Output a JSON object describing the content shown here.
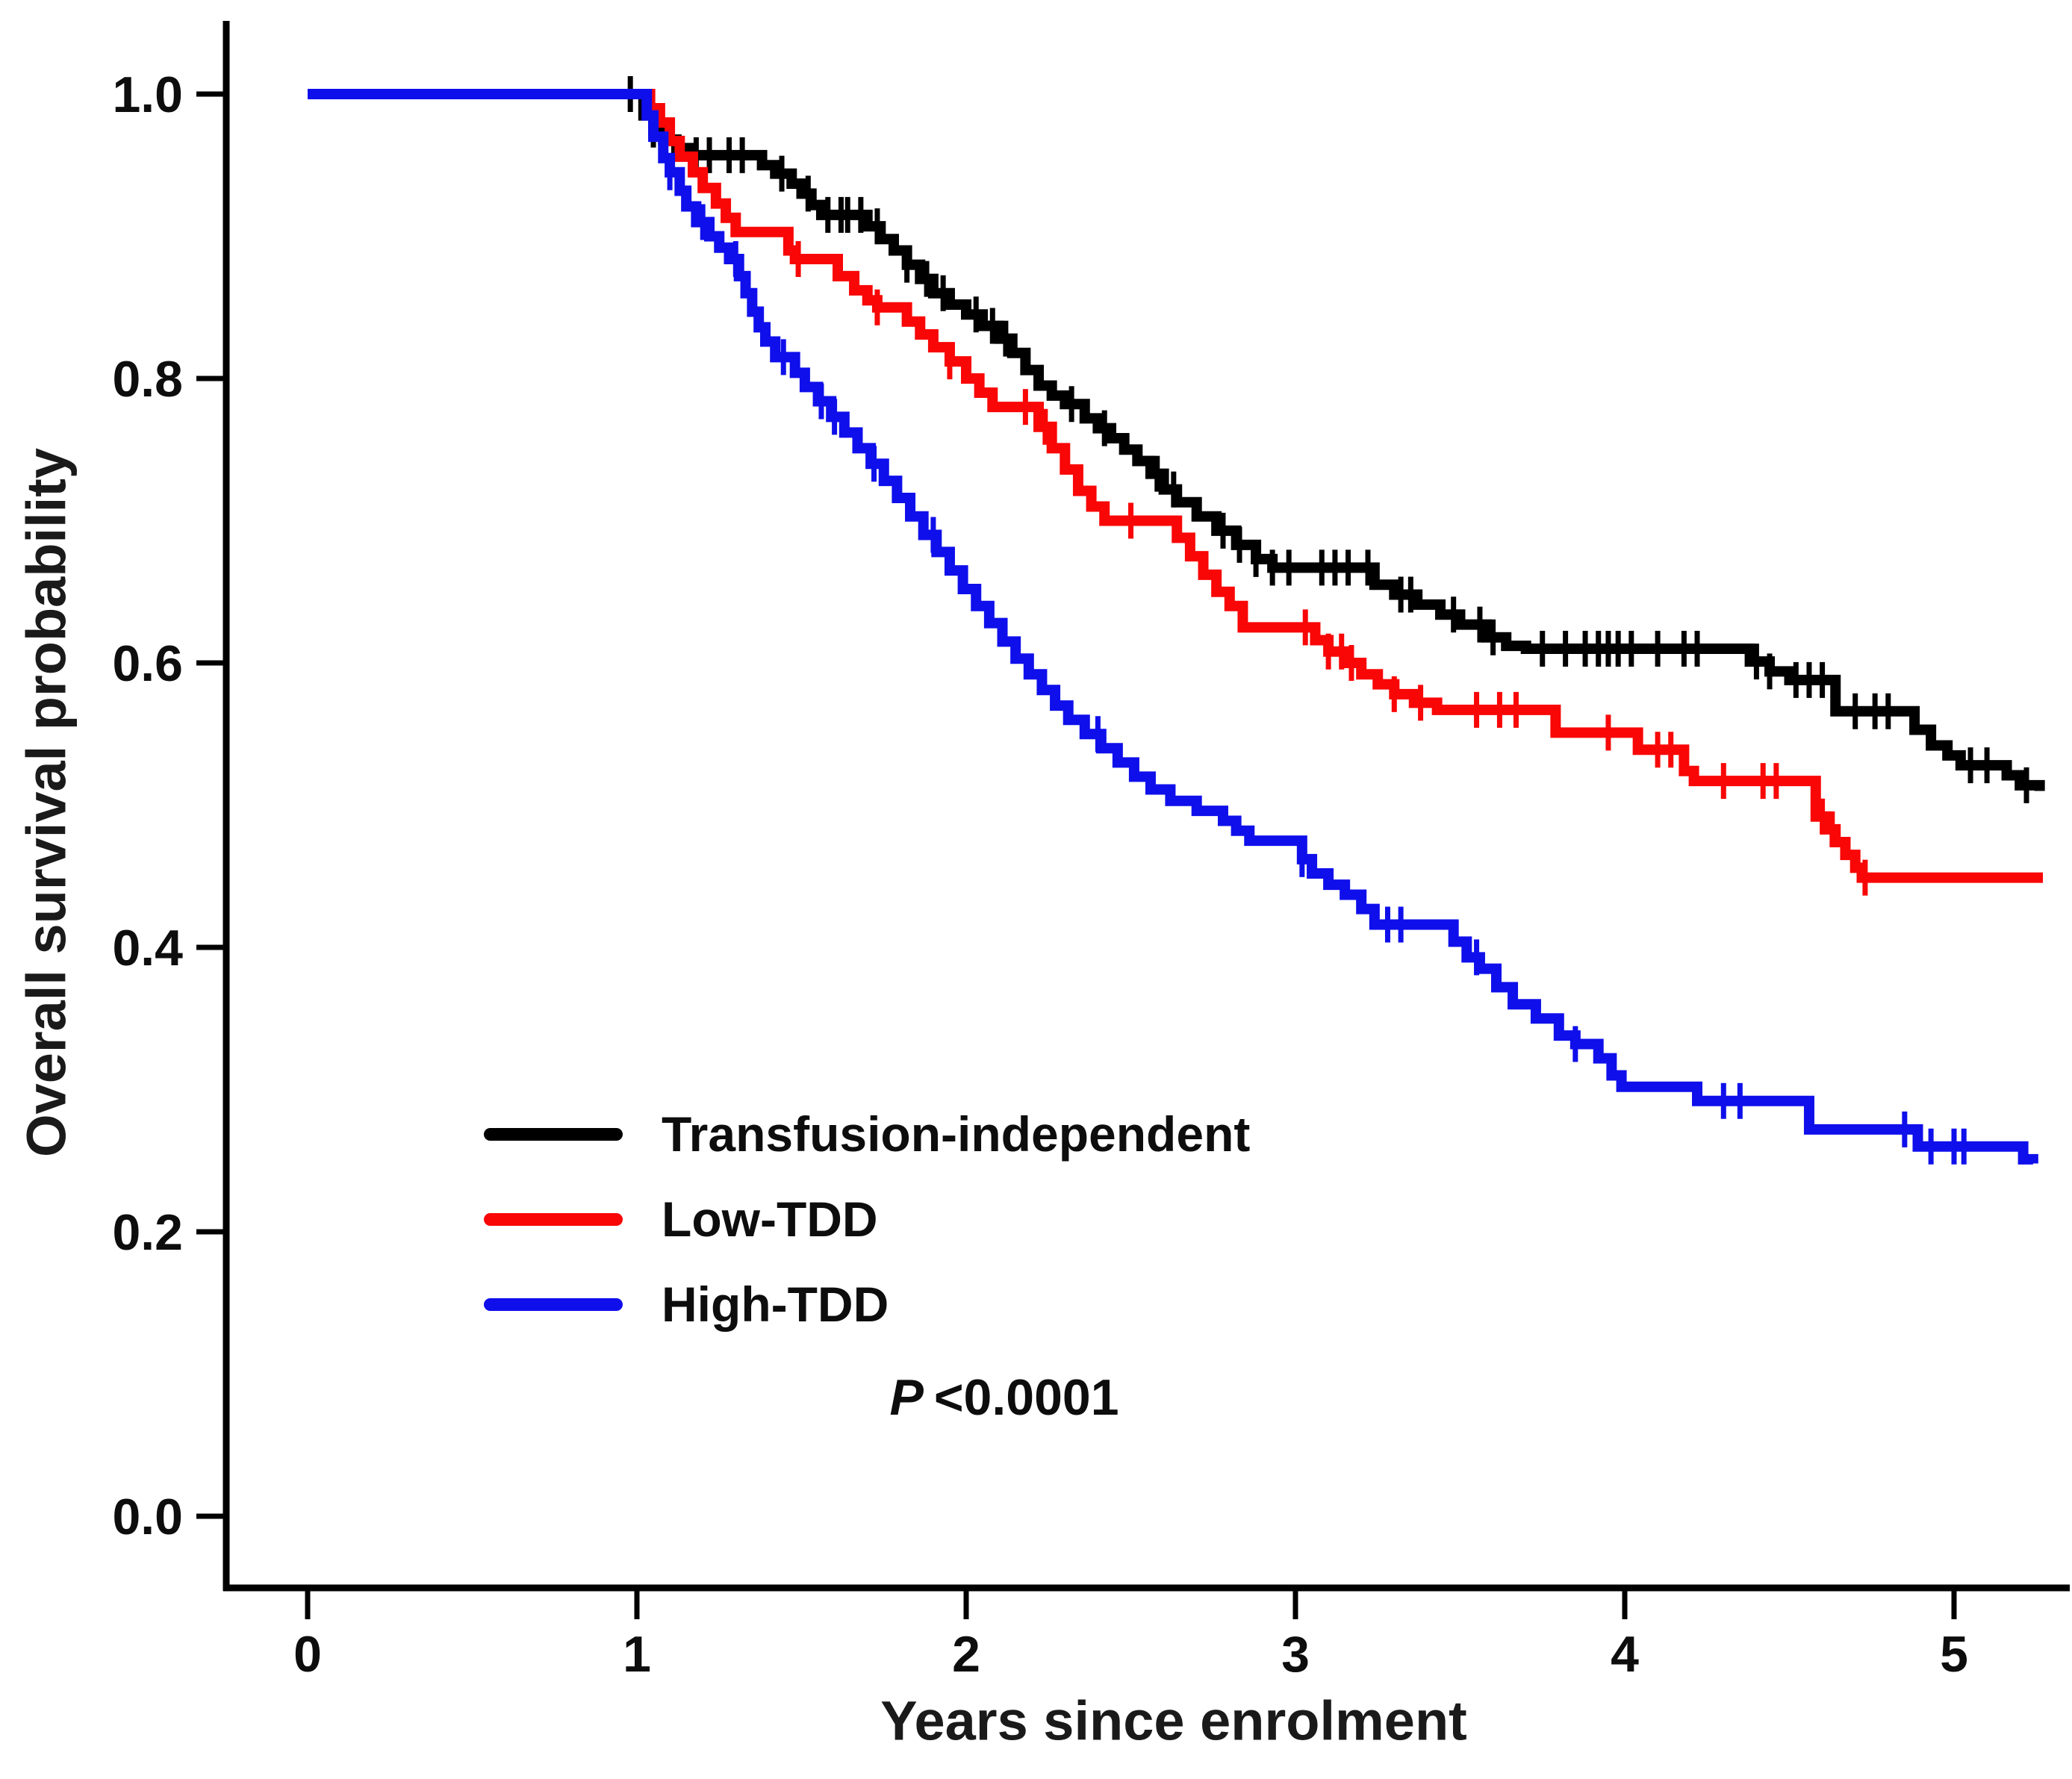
{
  "chart_data": {
    "type": "line",
    "subtype": "kaplan-meier-step",
    "title": "",
    "xlabel": "Years since enrolment",
    "ylabel": "Overall survival probability",
    "xlim": [
      -0.25,
      5.36
    ],
    "ylim": [
      -0.05,
      1.05
    ],
    "grid": false,
    "legend_position": "lower-left-inside",
    "annotation": {
      "label": "P",
      "value": "<0.0001"
    },
    "xticks": [
      {
        "value": 0,
        "label": "0"
      },
      {
        "value": 1,
        "label": "1"
      },
      {
        "value": 2,
        "label": "2"
      },
      {
        "value": 3,
        "label": "3"
      },
      {
        "value": 4,
        "label": "4"
      },
      {
        "value": 5,
        "label": "5"
      }
    ],
    "yticks": [
      {
        "value": 0.0,
        "label": "0.0"
      },
      {
        "value": 0.2,
        "label": "0.2"
      },
      {
        "value": 0.4,
        "label": "0.4"
      },
      {
        "value": 0.6,
        "label": "0.6"
      },
      {
        "value": 0.8,
        "label": "0.8"
      },
      {
        "value": 1.0,
        "label": "1.0"
      }
    ],
    "series": [
      {
        "name": "Transfusion-independent",
        "color": "#000000",
        "steps": [
          [
            0,
            1.0
          ],
          [
            1.0,
            1.0
          ],
          [
            1.02,
            0.985
          ],
          [
            1.05,
            0.975
          ],
          [
            1.08,
            0.968
          ],
          [
            1.12,
            0.962
          ],
          [
            1.17,
            0.957
          ],
          [
            1.38,
            0.95
          ],
          [
            1.42,
            0.944
          ],
          [
            1.47,
            0.937
          ],
          [
            1.5,
            0.93
          ],
          [
            1.53,
            0.922
          ],
          [
            1.56,
            0.915
          ],
          [
            1.7,
            0.907
          ],
          [
            1.74,
            0.898
          ],
          [
            1.78,
            0.89
          ],
          [
            1.82,
            0.88
          ],
          [
            1.86,
            0.87
          ],
          [
            1.9,
            0.86
          ],
          [
            1.95,
            0.852
          ],
          [
            2.0,
            0.845
          ],
          [
            2.05,
            0.837
          ],
          [
            2.1,
            0.828
          ],
          [
            2.14,
            0.818
          ],
          [
            2.18,
            0.806
          ],
          [
            2.22,
            0.795
          ],
          [
            2.26,
            0.788
          ],
          [
            2.3,
            0.782
          ],
          [
            2.36,
            0.772
          ],
          [
            2.4,
            0.765
          ],
          [
            2.44,
            0.758
          ],
          [
            2.48,
            0.75
          ],
          [
            2.52,
            0.742
          ],
          [
            2.56,
            0.733
          ],
          [
            2.6,
            0.722
          ],
          [
            2.64,
            0.713
          ],
          [
            2.7,
            0.703
          ],
          [
            2.76,
            0.693
          ],
          [
            2.82,
            0.683
          ],
          [
            2.88,
            0.673
          ],
          [
            2.93,
            0.667
          ],
          [
            3.24,
            0.655
          ],
          [
            3.3,
            0.648
          ],
          [
            3.37,
            0.641
          ],
          [
            3.44,
            0.634
          ],
          [
            3.5,
            0.627
          ],
          [
            3.58,
            0.618
          ],
          [
            3.64,
            0.612
          ],
          [
            3.7,
            0.61
          ],
          [
            4.38,
            0.601
          ],
          [
            4.44,
            0.594
          ],
          [
            4.5,
            0.588
          ],
          [
            4.64,
            0.566
          ],
          [
            4.88,
            0.553
          ],
          [
            4.93,
            0.542
          ],
          [
            4.98,
            0.535
          ],
          [
            5.02,
            0.528
          ],
          [
            5.16,
            0.521
          ],
          [
            5.2,
            0.514
          ],
          [
            5.26,
            0.51
          ]
        ],
        "censor_times": [
          0.98,
          1.05,
          1.18,
          1.22,
          1.28,
          1.32,
          1.44,
          1.52,
          1.58,
          1.62,
          1.64,
          1.68,
          1.73,
          1.82,
          1.88,
          1.93,
          2.03,
          2.08,
          2.12,
          2.32,
          2.42,
          2.58,
          2.63,
          2.78,
          2.83,
          2.88,
          2.93,
          2.98,
          3.08,
          3.12,
          3.16,
          3.22,
          3.32,
          3.35,
          3.48,
          3.56,
          3.6,
          3.75,
          3.82,
          3.88,
          3.92,
          3.95,
          3.98,
          4.02,
          4.1,
          4.18,
          4.22,
          4.4,
          4.44,
          4.52,
          4.56,
          4.6,
          4.7,
          4.76,
          4.8,
          5.05,
          5.1,
          5.22
        ]
      },
      {
        "name": "Low-TDD",
        "color": "#f90606",
        "steps": [
          [
            0,
            1.0
          ],
          [
            1.02,
            1.0
          ],
          [
            1.04,
            0.99
          ],
          [
            1.07,
            0.98
          ],
          [
            1.1,
            0.967
          ],
          [
            1.13,
            0.956
          ],
          [
            1.17,
            0.945
          ],
          [
            1.2,
            0.934
          ],
          [
            1.24,
            0.923
          ],
          [
            1.27,
            0.913
          ],
          [
            1.3,
            0.903
          ],
          [
            1.46,
            0.89
          ],
          [
            1.48,
            0.884
          ],
          [
            1.61,
            0.872
          ],
          [
            1.66,
            0.862
          ],
          [
            1.7,
            0.855
          ],
          [
            1.73,
            0.85
          ],
          [
            1.82,
            0.84
          ],
          [
            1.86,
            0.831
          ],
          [
            1.9,
            0.822
          ],
          [
            1.95,
            0.812
          ],
          [
            2.0,
            0.8
          ],
          [
            2.04,
            0.79
          ],
          [
            2.08,
            0.78
          ],
          [
            2.22,
            0.766
          ],
          [
            2.26,
            0.751
          ],
          [
            2.3,
            0.736
          ],
          [
            2.34,
            0.721
          ],
          [
            2.38,
            0.71
          ],
          [
            2.42,
            0.7
          ],
          [
            2.64,
            0.688
          ],
          [
            2.68,
            0.675
          ],
          [
            2.72,
            0.662
          ],
          [
            2.76,
            0.65
          ],
          [
            2.8,
            0.64
          ],
          [
            2.84,
            0.625
          ],
          [
            3.06,
            0.616
          ],
          [
            3.1,
            0.608
          ],
          [
            3.15,
            0.6
          ],
          [
            3.2,
            0.592
          ],
          [
            3.25,
            0.585
          ],
          [
            3.3,
            0.578
          ],
          [
            3.36,
            0.572
          ],
          [
            3.43,
            0.567
          ],
          [
            3.79,
            0.551
          ],
          [
            4.04,
            0.539
          ],
          [
            4.18,
            0.524
          ],
          [
            4.21,
            0.517
          ],
          [
            4.58,
            0.492
          ],
          [
            4.61,
            0.483
          ],
          [
            4.64,
            0.474
          ],
          [
            4.67,
            0.465
          ],
          [
            4.7,
            0.456
          ],
          [
            4.72,
            0.449
          ],
          [
            5.27,
            0.449
          ]
        ],
        "censor_times": [
          1.49,
          1.73,
          1.95,
          2.18,
          2.24,
          2.5,
          3.03,
          3.1,
          3.14,
          3.17,
          3.3,
          3.38,
          3.55,
          3.62,
          3.67,
          3.95,
          4.1,
          4.14,
          4.3,
          4.42,
          4.46,
          4.6,
          4.63,
          4.73
        ]
      },
      {
        "name": "High-TDD",
        "color": "#0f0feb",
        "steps": [
          [
            0,
            1.0
          ],
          [
            1.0,
            1.0
          ],
          [
            1.03,
            0.985
          ],
          [
            1.05,
            0.97
          ],
          [
            1.08,
            0.955
          ],
          [
            1.1,
            0.945
          ],
          [
            1.13,
            0.932
          ],
          [
            1.15,
            0.921
          ],
          [
            1.18,
            0.91
          ],
          [
            1.22,
            0.9
          ],
          [
            1.25,
            0.892
          ],
          [
            1.28,
            0.884
          ],
          [
            1.31,
            0.872
          ],
          [
            1.33,
            0.86
          ],
          [
            1.35,
            0.847
          ],
          [
            1.37,
            0.836
          ],
          [
            1.39,
            0.826
          ],
          [
            1.42,
            0.815
          ],
          [
            1.48,
            0.804
          ],
          [
            1.51,
            0.794
          ],
          [
            1.55,
            0.784
          ],
          [
            1.59,
            0.773
          ],
          [
            1.63,
            0.762
          ],
          [
            1.67,
            0.751
          ],
          [
            1.71,
            0.74
          ],
          [
            1.75,
            0.728
          ],
          [
            1.79,
            0.716
          ],
          [
            1.83,
            0.703
          ],
          [
            1.87,
            0.69
          ],
          [
            1.91,
            0.678
          ],
          [
            1.95,
            0.665
          ],
          [
            1.99,
            0.652
          ],
          [
            2.03,
            0.64
          ],
          [
            2.07,
            0.628
          ],
          [
            2.11,
            0.615
          ],
          [
            2.15,
            0.603
          ],
          [
            2.19,
            0.592
          ],
          [
            2.23,
            0.581
          ],
          [
            2.27,
            0.57
          ],
          [
            2.31,
            0.56
          ],
          [
            2.36,
            0.55
          ],
          [
            2.41,
            0.54
          ],
          [
            2.46,
            0.53
          ],
          [
            2.51,
            0.52
          ],
          [
            2.56,
            0.511
          ],
          [
            2.62,
            0.503
          ],
          [
            2.7,
            0.496
          ],
          [
            2.78,
            0.489
          ],
          [
            2.82,
            0.482
          ],
          [
            2.86,
            0.475
          ],
          [
            3.02,
            0.462
          ],
          [
            3.05,
            0.452
          ],
          [
            3.1,
            0.444
          ],
          [
            3.15,
            0.437
          ],
          [
            3.2,
            0.427
          ],
          [
            3.24,
            0.416
          ],
          [
            3.48,
            0.404
          ],
          [
            3.52,
            0.393
          ],
          [
            3.56,
            0.385
          ],
          [
            3.61,
            0.372
          ],
          [
            3.66,
            0.36
          ],
          [
            3.73,
            0.35
          ],
          [
            3.8,
            0.338
          ],
          [
            3.85,
            0.332
          ],
          [
            3.92,
            0.322
          ],
          [
            3.96,
            0.31
          ],
          [
            3.99,
            0.302
          ],
          [
            4.22,
            0.292
          ],
          [
            4.56,
            0.272
          ],
          [
            4.89,
            0.26
          ],
          [
            5.21,
            0.251
          ],
          [
            5.24,
            0.248
          ]
        ],
        "censor_times": [
          1.1,
          1.2,
          1.3,
          1.445,
          1.56,
          1.6,
          1.72,
          1.9,
          2.4,
          3.02,
          3.28,
          3.32,
          3.55,
          3.85,
          4.3,
          4.35,
          4.85,
          4.93,
          5.0,
          5.03
        ]
      }
    ]
  }
}
